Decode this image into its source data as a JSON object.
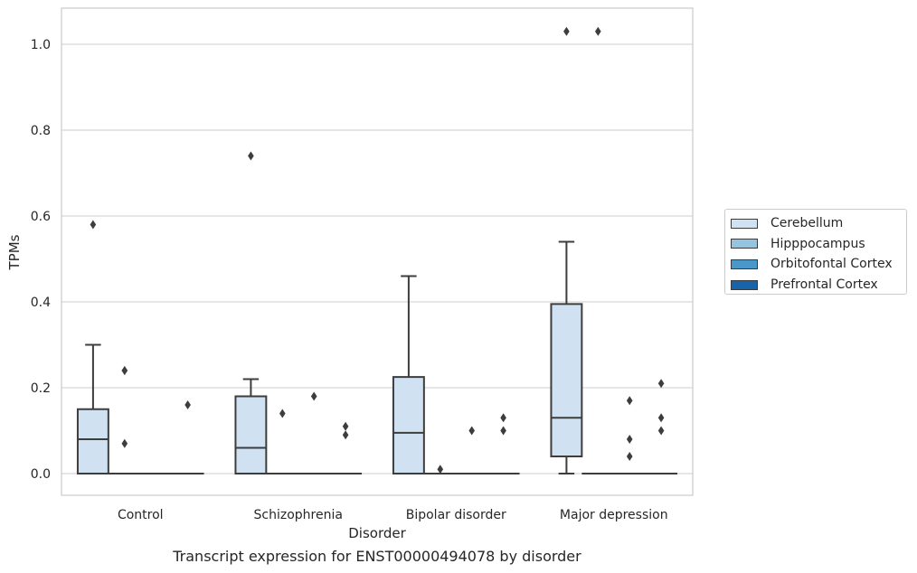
{
  "chart_data": {
    "type": "boxplot",
    "caption": "Transcript expression for ENST00000494078 by disorder",
    "xlabel": "Disorder",
    "ylabel": "TPMs",
    "ylim": [
      -0.05,
      1.08
    ],
    "yticks": [
      0.0,
      0.2,
      0.4,
      0.6,
      0.8,
      1.0
    ],
    "ytick_labels": [
      "0.0",
      "0.2",
      "0.4",
      "0.6",
      "0.8",
      "1.0"
    ],
    "grid": "horizontal",
    "legend_position": "right",
    "categories": [
      "Control",
      "Schizophrenia",
      "Bipolar disorder",
      "Major depression"
    ],
    "series": [
      {
        "name": "Cerebellum",
        "color": "#d0e1f2",
        "boxes": [
          {
            "whisker_low": 0.0,
            "q1": 0.0,
            "median": 0.08,
            "q3": 0.15,
            "whisker_high": 0.3,
            "fliers": [
              0.58
            ]
          },
          {
            "whisker_low": 0.0,
            "q1": 0.0,
            "median": 0.06,
            "q3": 0.18,
            "whisker_high": 0.22,
            "fliers": [
              0.74
            ]
          },
          {
            "whisker_low": 0.0,
            "q1": 0.0,
            "median": 0.095,
            "q3": 0.225,
            "whisker_high": 0.46,
            "fliers": []
          },
          {
            "whisker_low": 0.0,
            "q1": 0.04,
            "median": 0.13,
            "q3": 0.395,
            "whisker_high": 0.54,
            "fliers": [
              1.03
            ]
          }
        ]
      },
      {
        "name": "Hipppocampus",
        "color": "#94c4df",
        "boxes": [
          {
            "whisker_low": 0.0,
            "q1": 0.0,
            "median": 0.0,
            "q3": 0.0,
            "whisker_high": 0.0,
            "fliers": [
              0.24,
              0.24,
              0.07
            ]
          },
          {
            "whisker_low": 0.0,
            "q1": 0.0,
            "median": 0.0,
            "q3": 0.0,
            "whisker_high": 0.0,
            "fliers": [
              0.14
            ]
          },
          {
            "whisker_low": 0.0,
            "q1": 0.0,
            "median": 0.0,
            "q3": 0.0,
            "whisker_high": 0.0,
            "fliers": [
              0.01
            ]
          },
          {
            "whisker_low": 0.0,
            "q1": 0.0,
            "median": 0.0,
            "q3": 0.0,
            "whisker_high": 0.0,
            "fliers": [
              1.03
            ]
          }
        ]
      },
      {
        "name": "Orbitofontal Cortex",
        "color": "#4a98c9",
        "boxes": [
          {
            "whisker_low": 0.0,
            "q1": 0.0,
            "median": 0.0,
            "q3": 0.0,
            "whisker_high": 0.0,
            "fliers": []
          },
          {
            "whisker_low": 0.0,
            "q1": 0.0,
            "median": 0.0,
            "q3": 0.0,
            "whisker_high": 0.0,
            "fliers": [
              0.18
            ]
          },
          {
            "whisker_low": 0.0,
            "q1": 0.0,
            "median": 0.0,
            "q3": 0.0,
            "whisker_high": 0.0,
            "fliers": [
              0.1
            ]
          },
          {
            "whisker_low": 0.0,
            "q1": 0.0,
            "median": 0.0,
            "q3": 0.0,
            "whisker_high": 0.0,
            "fliers": [
              0.17,
              0.08,
              0.04
            ]
          }
        ]
      },
      {
        "name": "Prefrontal Cortex",
        "color": "#1764ab",
        "boxes": [
          {
            "whisker_low": 0.0,
            "q1": 0.0,
            "median": 0.0,
            "q3": 0.0,
            "whisker_high": 0.0,
            "fliers": [
              0.16
            ]
          },
          {
            "whisker_low": 0.0,
            "q1": 0.0,
            "median": 0.0,
            "q3": 0.0,
            "whisker_high": 0.0,
            "fliers": [
              0.11,
              0.09
            ]
          },
          {
            "whisker_low": 0.0,
            "q1": 0.0,
            "median": 0.0,
            "q3": 0.0,
            "whisker_high": 0.0,
            "fliers": [
              0.13,
              0.1
            ]
          },
          {
            "whisker_low": 0.0,
            "q1": 0.0,
            "median": 0.0,
            "q3": 0.0,
            "whisker_high": 0.0,
            "fliers": [
              0.21,
              0.13,
              0.1
            ]
          }
        ]
      }
    ]
  }
}
